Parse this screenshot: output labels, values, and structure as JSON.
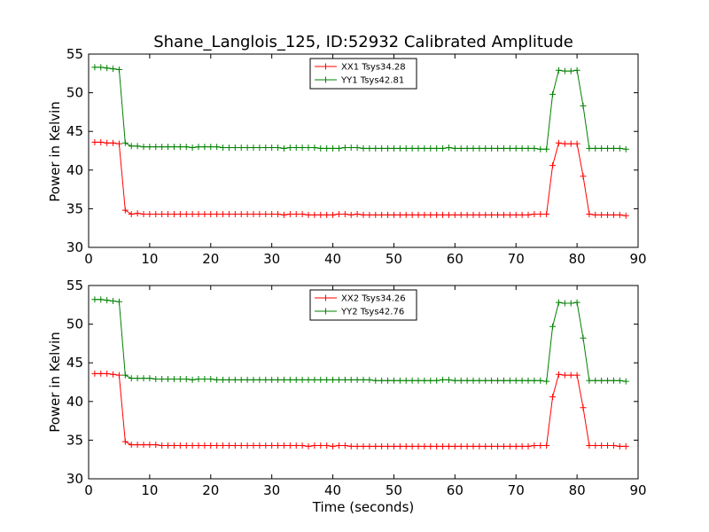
{
  "title": "Shane_Langlois_125, ID:52932 Calibrated Amplitude",
  "chart_data": [
    {
      "type": "line",
      "ylabel": "Power in Kelvin",
      "xlabel": "",
      "xlim": [
        0,
        90
      ],
      "ylim": [
        30,
        55
      ],
      "xticks": [
        0,
        10,
        20,
        30,
        40,
        50,
        60,
        70,
        80,
        90
      ],
      "yticks": [
        30,
        35,
        40,
        45,
        50,
        55
      ],
      "grid": false,
      "legend_position": "top-center",
      "series": [
        {
          "name": "XX1 Tsys34.28",
          "color": "#ff0000",
          "x": [
            1,
            2,
            3,
            4,
            5,
            6,
            7,
            8,
            9,
            10,
            11,
            12,
            13,
            14,
            15,
            16,
            17,
            18,
            19,
            20,
            21,
            22,
            23,
            24,
            25,
            26,
            27,
            28,
            29,
            30,
            31,
            32,
            33,
            34,
            35,
            36,
            37,
            38,
            39,
            40,
            41,
            42,
            43,
            44,
            45,
            46,
            47,
            48,
            49,
            50,
            51,
            52,
            53,
            54,
            55,
            56,
            57,
            58,
            59,
            60,
            61,
            62,
            63,
            64,
            65,
            66,
            67,
            68,
            69,
            70,
            71,
            72,
            73,
            74,
            75,
            76,
            77,
            78,
            79,
            80,
            81,
            82,
            83,
            84,
            85,
            86,
            87,
            88
          ],
          "y": [
            43.6,
            43.6,
            43.5,
            43.5,
            43.4,
            34.8,
            34.3,
            34.4,
            34.3,
            34.3,
            34.3,
            34.3,
            34.3,
            34.3,
            34.3,
            34.3,
            34.3,
            34.3,
            34.3,
            34.3,
            34.3,
            34.3,
            34.3,
            34.3,
            34.3,
            34.3,
            34.3,
            34.3,
            34.3,
            34.3,
            34.3,
            34.2,
            34.3,
            34.3,
            34.3,
            34.2,
            34.2,
            34.2,
            34.2,
            34.2,
            34.3,
            34.3,
            34.2,
            34.3,
            34.2,
            34.2,
            34.2,
            34.2,
            34.2,
            34.2,
            34.2,
            34.2,
            34.2,
            34.2,
            34.2,
            34.2,
            34.2,
            34.2,
            34.2,
            34.2,
            34.2,
            34.2,
            34.2,
            34.2,
            34.2,
            34.2,
            34.2,
            34.2,
            34.2,
            34.2,
            34.2,
            34.2,
            34.3,
            34.3,
            34.3,
            40.6,
            43.5,
            43.4,
            43.4,
            43.4,
            39.2,
            34.3,
            34.2,
            34.2,
            34.2,
            34.2,
            34.2,
            34.1
          ]
        },
        {
          "name": "YY1 Tsys42.81",
          "color": "#008000",
          "x": [
            1,
            2,
            3,
            4,
            5,
            6,
            7,
            8,
            9,
            10,
            11,
            12,
            13,
            14,
            15,
            16,
            17,
            18,
            19,
            20,
            21,
            22,
            23,
            24,
            25,
            26,
            27,
            28,
            29,
            30,
            31,
            32,
            33,
            34,
            35,
            36,
            37,
            38,
            39,
            40,
            41,
            42,
            43,
            44,
            45,
            46,
            47,
            48,
            49,
            50,
            51,
            52,
            53,
            54,
            55,
            56,
            57,
            58,
            59,
            60,
            61,
            62,
            63,
            64,
            65,
            66,
            67,
            68,
            69,
            70,
            71,
            72,
            73,
            74,
            75,
            76,
            77,
            78,
            79,
            80,
            81,
            82,
            83,
            84,
            85,
            86,
            87,
            88
          ],
          "y": [
            53.3,
            53.3,
            53.2,
            53.1,
            53.0,
            43.5,
            43.1,
            43.1,
            43.0,
            43.0,
            43.0,
            43.0,
            43.0,
            43.0,
            43.0,
            43.0,
            42.9,
            43.0,
            43.0,
            43.0,
            43.0,
            42.9,
            42.9,
            42.9,
            42.9,
            42.9,
            42.9,
            42.9,
            42.9,
            42.9,
            42.9,
            42.8,
            42.9,
            42.9,
            42.9,
            42.9,
            42.9,
            42.8,
            42.8,
            42.8,
            42.8,
            42.9,
            42.9,
            42.9,
            42.8,
            42.8,
            42.8,
            42.8,
            42.8,
            42.8,
            42.8,
            42.8,
            42.8,
            42.8,
            42.8,
            42.8,
            42.8,
            42.8,
            42.9,
            42.8,
            42.8,
            42.8,
            42.8,
            42.8,
            42.8,
            42.8,
            42.8,
            42.8,
            42.8,
            42.8,
            42.8,
            42.8,
            42.8,
            42.7,
            42.7,
            49.8,
            52.9,
            52.8,
            52.8,
            52.9,
            48.3,
            42.8,
            42.8,
            42.8,
            42.8,
            42.8,
            42.8,
            42.7
          ]
        }
      ]
    },
    {
      "type": "line",
      "ylabel": "Power in Kelvin",
      "xlabel": "Time (seconds)",
      "xlim": [
        0,
        90
      ],
      "ylim": [
        30,
        55
      ],
      "xticks": [
        0,
        10,
        20,
        30,
        40,
        50,
        60,
        70,
        80,
        90
      ],
      "yticks": [
        30,
        35,
        40,
        45,
        50,
        55
      ],
      "grid": false,
      "legend_position": "top-center",
      "series": [
        {
          "name": "XX2 Tsys34.26",
          "color": "#ff0000",
          "x": [
            1,
            2,
            3,
            4,
            5,
            6,
            7,
            8,
            9,
            10,
            11,
            12,
            13,
            14,
            15,
            16,
            17,
            18,
            19,
            20,
            21,
            22,
            23,
            24,
            25,
            26,
            27,
            28,
            29,
            30,
            31,
            32,
            33,
            34,
            35,
            36,
            37,
            38,
            39,
            40,
            41,
            42,
            43,
            44,
            45,
            46,
            47,
            48,
            49,
            50,
            51,
            52,
            53,
            54,
            55,
            56,
            57,
            58,
            59,
            60,
            61,
            62,
            63,
            64,
            65,
            66,
            67,
            68,
            69,
            70,
            71,
            72,
            73,
            74,
            75,
            76,
            77,
            78,
            79,
            80,
            81,
            82,
            83,
            84,
            85,
            86,
            87,
            88
          ],
          "y": [
            43.6,
            43.6,
            43.6,
            43.5,
            43.4,
            34.8,
            34.4,
            34.4,
            34.4,
            34.4,
            34.4,
            34.3,
            34.3,
            34.3,
            34.3,
            34.3,
            34.3,
            34.3,
            34.3,
            34.3,
            34.3,
            34.3,
            34.3,
            34.3,
            34.3,
            34.3,
            34.3,
            34.3,
            34.3,
            34.3,
            34.3,
            34.3,
            34.3,
            34.3,
            34.3,
            34.2,
            34.3,
            34.3,
            34.3,
            34.2,
            34.3,
            34.3,
            34.2,
            34.2,
            34.2,
            34.2,
            34.2,
            34.2,
            34.2,
            34.2,
            34.2,
            34.2,
            34.2,
            34.2,
            34.2,
            34.2,
            34.2,
            34.2,
            34.2,
            34.2,
            34.2,
            34.2,
            34.2,
            34.2,
            34.2,
            34.2,
            34.2,
            34.2,
            34.2,
            34.2,
            34.2,
            34.2,
            34.3,
            34.3,
            34.3,
            40.6,
            43.5,
            43.4,
            43.4,
            43.4,
            39.2,
            34.3,
            34.3,
            34.3,
            34.3,
            34.3,
            34.2,
            34.2
          ]
        },
        {
          "name": "YY2 Tsys42.76",
          "color": "#008000",
          "x": [
            1,
            2,
            3,
            4,
            5,
            6,
            7,
            8,
            9,
            10,
            11,
            12,
            13,
            14,
            15,
            16,
            17,
            18,
            19,
            20,
            21,
            22,
            23,
            24,
            25,
            26,
            27,
            28,
            29,
            30,
            31,
            32,
            33,
            34,
            35,
            36,
            37,
            38,
            39,
            40,
            41,
            42,
            43,
            44,
            45,
            46,
            47,
            48,
            49,
            50,
            51,
            52,
            53,
            54,
            55,
            56,
            57,
            58,
            59,
            60,
            61,
            62,
            63,
            64,
            65,
            66,
            67,
            68,
            69,
            70,
            71,
            72,
            73,
            74,
            75,
            76,
            77,
            78,
            79,
            80,
            81,
            82,
            83,
            84,
            85,
            86,
            87,
            88
          ],
          "y": [
            53.2,
            53.2,
            53.1,
            53.0,
            52.9,
            43.4,
            43.0,
            43.0,
            43.0,
            43.0,
            42.9,
            42.9,
            42.9,
            42.9,
            42.9,
            42.9,
            42.8,
            42.9,
            42.9,
            42.9,
            42.8,
            42.8,
            42.8,
            42.8,
            42.8,
            42.8,
            42.8,
            42.8,
            42.8,
            42.8,
            42.8,
            42.8,
            42.8,
            42.8,
            42.8,
            42.8,
            42.8,
            42.8,
            42.8,
            42.8,
            42.8,
            42.8,
            42.8,
            42.8,
            42.8,
            42.8,
            42.7,
            42.7,
            42.7,
            42.7,
            42.7,
            42.7,
            42.7,
            42.7,
            42.7,
            42.7,
            42.7,
            42.8,
            42.8,
            42.7,
            42.7,
            42.7,
            42.7,
            42.7,
            42.7,
            42.7,
            42.7,
            42.7,
            42.7,
            42.7,
            42.7,
            42.7,
            42.7,
            42.7,
            42.6,
            49.7,
            52.8,
            52.7,
            52.7,
            52.8,
            48.2,
            42.7,
            42.7,
            42.7,
            42.7,
            42.7,
            42.7,
            42.6
          ]
        }
      ]
    }
  ]
}
